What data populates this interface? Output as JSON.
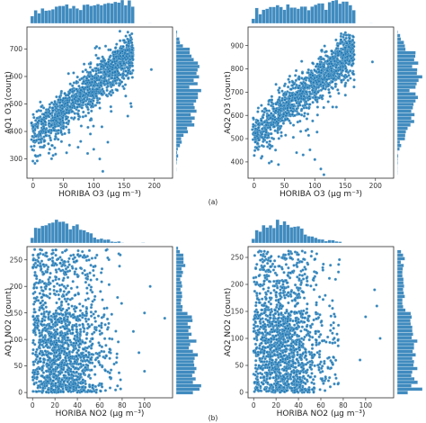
{
  "figure": {
    "label_a": "(a)",
    "label_b": "(b)",
    "marker_color": "#1f77b4",
    "edge_color": "#9ecae1"
  },
  "chart_data": [
    {
      "id": "o3-aq1",
      "type": "scatter",
      "xlabel": "HORIBA O3 (µg m⁻³)",
      "ylabel": "AQ1 O3 (count)",
      "xlim": [
        -10,
        230
      ],
      "ylim": [
        230,
        780
      ],
      "xticks": [
        0,
        50,
        100,
        150,
        200
      ],
      "yticks": [
        300,
        400,
        500,
        600,
        700
      ],
      "trend": {
        "x0": 0,
        "y0": 385,
        "slope": 1.85,
        "spread": 38,
        "xmax": 165,
        "ymax": 765
      },
      "outliers": [
        [
          195,
          625
        ],
        [
          90,
          320
        ],
        [
          110,
          300
        ],
        [
          115,
          255
        ],
        [
          60,
          350
        ],
        [
          100,
          335
        ]
      ],
      "marginals": "histograms of x (top) and y (right)"
    },
    {
      "id": "o3-aq2",
      "type": "scatter",
      "xlabel": "HORIBA O3 (µg m⁻³)",
      "ylabel": "AQ2 O3 (count)",
      "xlim": [
        -10,
        230
      ],
      "ylim": [
        330,
        980
      ],
      "xticks": [
        0,
        50,
        100,
        150,
        200
      ],
      "yticks": [
        400,
        500,
        600,
        700,
        800,
        900
      ],
      "trend": {
        "x0": 0,
        "y0": 520,
        "slope": 2.25,
        "spread": 45,
        "xmax": 165,
        "ymax": 960
      },
      "outliers": [
        [
          195,
          830
        ],
        [
          110,
          370
        ],
        [
          115,
          345
        ],
        [
          100,
          410
        ],
        [
          70,
          440
        ]
      ],
      "marginals": "histograms of x (top) and y (right)"
    },
    {
      "id": "no2-aq1",
      "type": "scatter",
      "xlabel": "HORIBA NO2 (µg m⁻³)",
      "ylabel": "AQ1 NO2 (count)",
      "xlim": [
        -5,
        125
      ],
      "ylim": [
        -10,
        275
      ],
      "xticks": [
        0,
        20,
        40,
        60,
        80,
        100
      ],
      "yticks": [
        0,
        50,
        100,
        150,
        200,
        250
      ],
      "cloud": {
        "xmode": 22,
        "xmax": 80,
        "ymax": 270
      },
      "outliers": [
        [
          118,
          140
        ],
        [
          100,
          150
        ],
        [
          95,
          75
        ],
        [
          100,
          40
        ],
        [
          105,
          200
        ],
        [
          90,
          115
        ]
      ],
      "marginals": "histograms of x (top) and y (right)"
    },
    {
      "id": "no2-aq2",
      "type": "scatter",
      "xlabel": "HORIBA NO2 (µg m⁻³)",
      "ylabel": "AQ2 NO2 (count)",
      "xlim": [
        -5,
        125
      ],
      "ylim": [
        -10,
        270
      ],
      "xticks": [
        0,
        20,
        40,
        60,
        80,
        100
      ],
      "yticks": [
        0,
        50,
        100,
        150,
        200,
        250
      ],
      "cloud": {
        "xmode": 22,
        "xmax": 80,
        "ymax": 262
      },
      "outliers": [
        [
          113,
          100
        ],
        [
          108,
          190
        ],
        [
          100,
          140
        ],
        [
          95,
          60
        ],
        [
          110,
          160
        ]
      ],
      "marginals": "histograms of x (top) and y (right)"
    }
  ]
}
